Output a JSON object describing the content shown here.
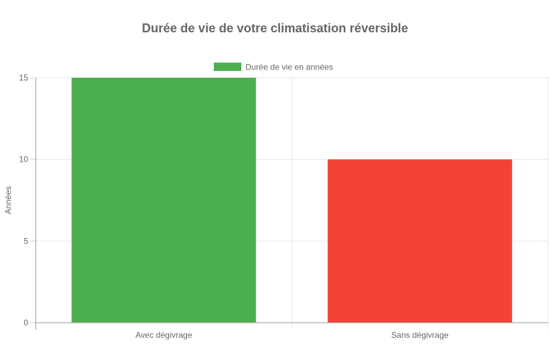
{
  "chart_data": {
    "type": "bar",
    "title": "Durée de vie de votre climatisation réversible",
    "categories": [
      "Avec dégivrage",
      "Sans dégivrage"
    ],
    "series": [
      {
        "name": "Durée de vie en années",
        "values": [
          15,
          10
        ]
      }
    ],
    "bar_colors": [
      "#4caf50",
      "#f44336"
    ],
    "legend_color": "#4caf50",
    "xlabel": "",
    "ylabel": "Années",
    "ylim": [
      0,
      15
    ],
    "yticks": [
      0,
      5,
      10,
      15
    ],
    "grid": true,
    "legend_position": "top"
  }
}
